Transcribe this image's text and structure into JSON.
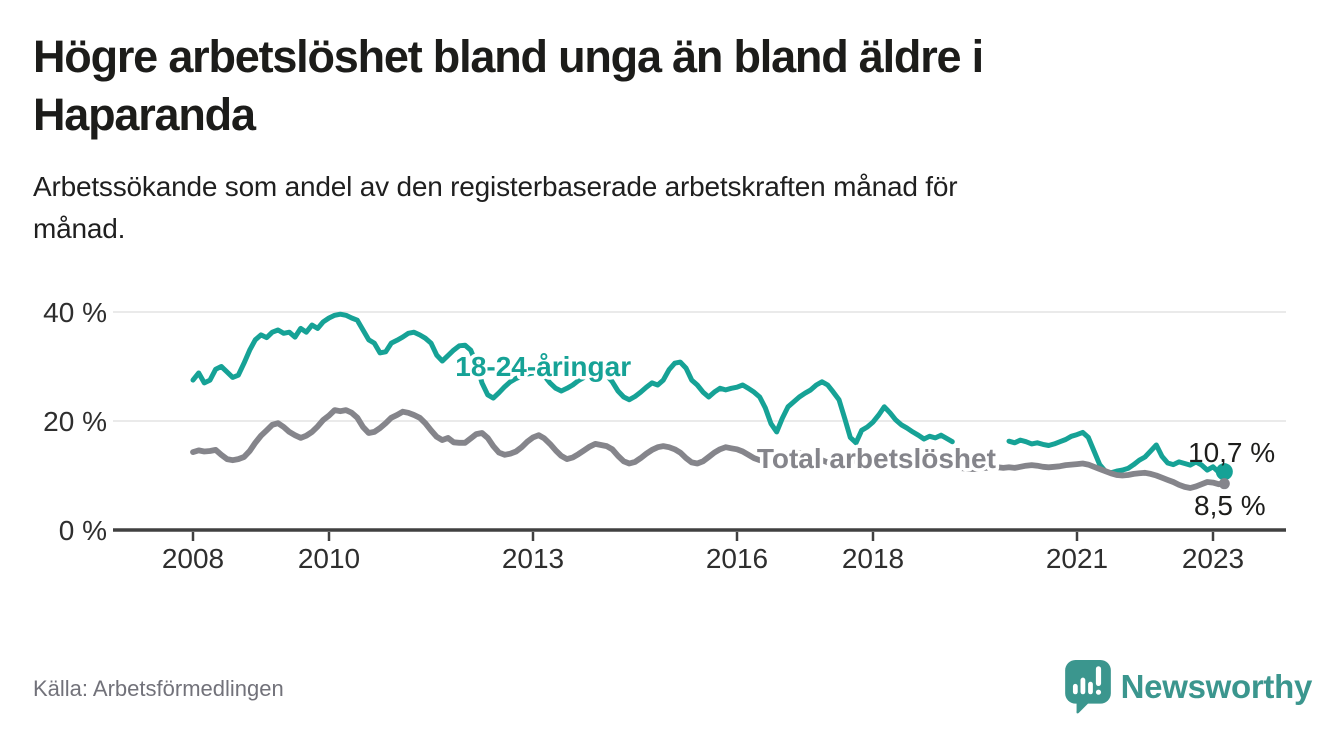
{
  "header": {
    "title": "Högre arbetslöshet bland unga än bland äldre i Haparanda",
    "title_lines": [
      "Högre arbetslöshet bland unga än bland äldre i",
      "Haparanda"
    ],
    "subtitle": "Arbetssökande som andel av den registerbaserade arbetskraften månad för månad.",
    "subtitle_lines": [
      "Arbetssökande som andel av den registerbaserade arbetskraften månad för",
      "månad."
    ]
  },
  "footer": {
    "source": "Källa: Arbetsförmedlingen",
    "brand": "Newsworthy",
    "brand_icon": "speech-bubble-bar-chart"
  },
  "colors": {
    "youth_teal": "#16a296",
    "total_gray": "#85858b",
    "grid": "#e3e3e3",
    "axis": "#404040",
    "tick_text": "#2e2e2e",
    "end_label_text": "#1d1d1b",
    "source_text": "#72727a",
    "brand_teal": "#3b968e"
  },
  "chart_data": {
    "type": "line",
    "title": "Högre arbetslöshet bland unga än bland äldre i Haparanda",
    "subtitle": "Arbetssökande som andel av den registerbaserade arbetskraften månad för månad.",
    "xlabel": "",
    "ylabel": "",
    "x_start_year": 2008,
    "x_step_years": 0.0833333,
    "xlim": [
      2006.8,
      2024.1
    ],
    "ylim": [
      0,
      43
    ],
    "grid": "horizontal-only",
    "legend_position": "inline-on-lines",
    "xticks": [
      2008,
      2010,
      2013,
      2016,
      2018,
      2021,
      2023
    ],
    "yticks": [
      0,
      20,
      40
    ],
    "ytick_labels": [
      "0 %",
      "20 %",
      "40 %"
    ],
    "series": [
      {
        "name": "18-24-åringar",
        "color": "#16a296",
        "end_label": "10,7 %",
        "end_value": 10.7,
        "note": "gap in data Apr-Dec 2019",
        "values": [
          27.5,
          28.8,
          27.0,
          27.5,
          29.5,
          30.0,
          29.0,
          28.0,
          28.4,
          30.6,
          33.0,
          34.9,
          35.8,
          35.3,
          36.3,
          36.7,
          36.1,
          36.3,
          35.4,
          37.0,
          36.3,
          37.6,
          37.0,
          38.2,
          38.9,
          39.4,
          39.6,
          39.4,
          38.9,
          38.5,
          36.7,
          34.9,
          34.3,
          32.5,
          32.7,
          34.3,
          34.8,
          35.4,
          36.1,
          36.3,
          35.8,
          35.2,
          34.3,
          32.1,
          31.0,
          32.0,
          33.0,
          33.8,
          33.9,
          33.0,
          30.5,
          27.0,
          24.8,
          24.2,
          25.2,
          26.3,
          27.2,
          27.8,
          28.2,
          28.6,
          28.8,
          29.2,
          28.3,
          27.0,
          26.0,
          25.5,
          26.0,
          26.6,
          27.4,
          28.0,
          28.3,
          28.6,
          28.8,
          28.4,
          27.2,
          25.5,
          24.4,
          23.9,
          24.5,
          25.3,
          26.2,
          27.0,
          26.6,
          27.5,
          29.4,
          30.6,
          30.8,
          29.7,
          27.5,
          26.6,
          25.3,
          24.4,
          25.3,
          26.0,
          25.7,
          26.0,
          26.2,
          26.6,
          26.0,
          25.3,
          24.4,
          22.4,
          19.5,
          18.0,
          20.5,
          22.6,
          23.5,
          24.4,
          25.1,
          25.7,
          26.6,
          27.2,
          26.6,
          25.3,
          23.9,
          20.5,
          17.0,
          16.0,
          18.3,
          18.9,
          19.8,
          21.1,
          22.6,
          21.5,
          20.2,
          19.3,
          18.7,
          18.0,
          17.4,
          16.7,
          17.2,
          16.9,
          17.4,
          16.8,
          16.2,
          null,
          null,
          null,
          null,
          null,
          null,
          null,
          null,
          null,
          16.3,
          16.0,
          16.5,
          16.2,
          15.8,
          16.0,
          15.7,
          15.5,
          15.8,
          16.2,
          16.6,
          17.2,
          17.5,
          17.9,
          17.0,
          14.5,
          12.0,
          10.8,
          10.5,
          10.8,
          11.0,
          11.3,
          12.0,
          12.8,
          13.4,
          14.5,
          15.6,
          13.5,
          12.3,
          12.0,
          12.5,
          12.2,
          11.9,
          12.5,
          11.9,
          11.0,
          11.6,
          10.6,
          10.7
        ]
      },
      {
        "name": "Total arbetslöshet",
        "color": "#85858b",
        "end_label": "8,5 %",
        "end_value": 8.5,
        "note": "",
        "values": [
          14.3,
          14.6,
          14.4,
          14.5,
          14.7,
          13.8,
          13.0,
          12.8,
          13.0,
          13.4,
          14.5,
          16.0,
          17.3,
          18.3,
          19.3,
          19.6,
          18.9,
          18.0,
          17.4,
          16.9,
          17.3,
          18.0,
          19.0,
          20.2,
          21.0,
          22.0,
          21.8,
          22.0,
          21.5,
          20.6,
          18.9,
          17.8,
          18.0,
          18.7,
          19.6,
          20.6,
          21.1,
          21.7,
          21.5,
          21.1,
          20.6,
          19.6,
          18.3,
          17.1,
          16.5,
          16.9,
          16.1,
          16.0,
          16.0,
          16.8,
          17.6,
          17.8,
          16.9,
          15.4,
          14.2,
          13.8,
          14.0,
          14.4,
          15.2,
          16.2,
          17.0,
          17.4,
          16.8,
          15.8,
          14.6,
          13.6,
          13.0,
          13.3,
          13.9,
          14.6,
          15.3,
          15.8,
          15.6,
          15.4,
          14.8,
          13.6,
          12.6,
          12.2,
          12.5,
          13.2,
          14.0,
          14.7,
          15.2,
          15.4,
          15.2,
          14.8,
          14.2,
          13.2,
          12.4,
          12.2,
          12.6,
          13.4,
          14.2,
          14.8,
          15.2,
          15.0,
          14.8,
          14.4,
          13.8,
          13.2,
          12.8,
          12.6,
          12.9,
          13.3,
          13.7,
          14.0,
          14.2,
          14.1,
          13.9,
          13.6,
          13.2,
          12.8,
          12.4,
          12.1,
          12.0,
          12.2,
          12.5,
          12.8,
          13.0,
          13.1,
          13.0,
          12.8,
          12.5,
          12.1,
          11.8,
          11.6,
          11.5,
          11.7,
          11.9,
          12.1,
          12.2,
          12.1,
          12.0,
          11.8,
          11.6,
          11.4,
          11.3,
          11.2,
          11.2,
          11.3,
          11.4,
          11.5,
          11.5,
          11.4,
          11.5,
          11.4,
          11.6,
          11.8,
          11.9,
          11.8,
          11.6,
          11.5,
          11.6,
          11.7,
          11.9,
          12.0,
          12.1,
          12.2,
          12.0,
          11.6,
          11.2,
          10.8,
          10.4,
          10.1,
          10.0,
          10.1,
          10.3,
          10.4,
          10.5,
          10.3,
          10.0,
          9.6,
          9.2,
          8.8,
          8.3,
          7.9,
          7.7,
          8.0,
          8.4,
          8.8,
          8.7,
          8.4,
          8.5
        ]
      }
    ]
  }
}
